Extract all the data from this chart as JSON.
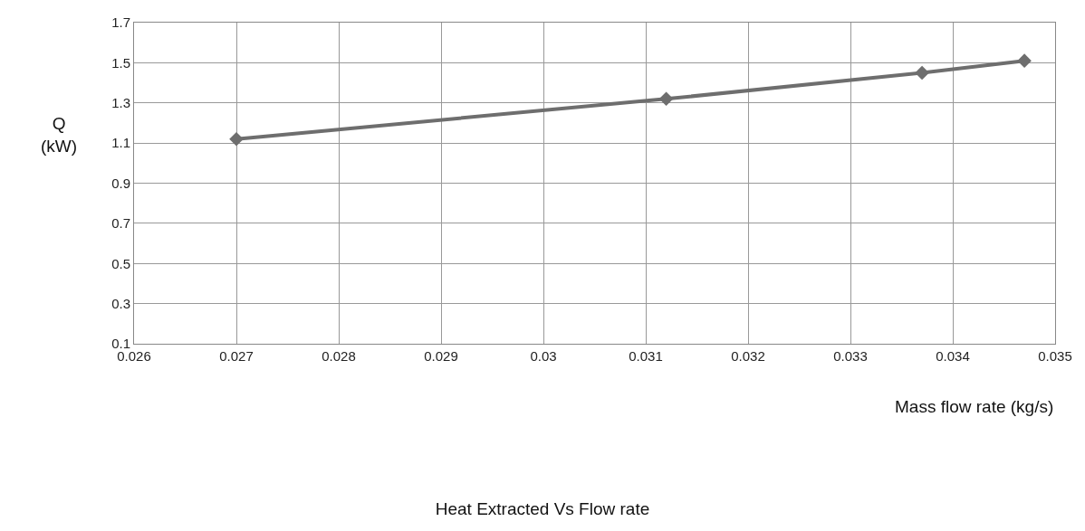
{
  "chart_data": {
    "type": "line",
    "title": "Heat Extracted Vs Flow rate",
    "xlabel": "Mass flow rate (kg/s)",
    "ylabel": "Q\n(kW)",
    "x": [
      0.027,
      0.0312,
      0.0337,
      0.0347
    ],
    "series": [
      {
        "color": "#6e6e6e",
        "values": [
          1.12,
          1.32,
          1.45,
          1.51
        ]
      }
    ],
    "xlim": [
      0.026,
      0.035
    ],
    "xticks": [
      0.026,
      0.027,
      0.028,
      0.029,
      0.03,
      0.031,
      0.032,
      0.033,
      0.034,
      0.035
    ],
    "ylim": [
      0.1,
      1.7
    ],
    "yticks": [
      0.1,
      0.3,
      0.5,
      0.7,
      0.9,
      1.1,
      1.3,
      1.5,
      1.7
    ],
    "grid": true,
    "marker": "diamond",
    "line_style": "solid",
    "legend": false
  }
}
